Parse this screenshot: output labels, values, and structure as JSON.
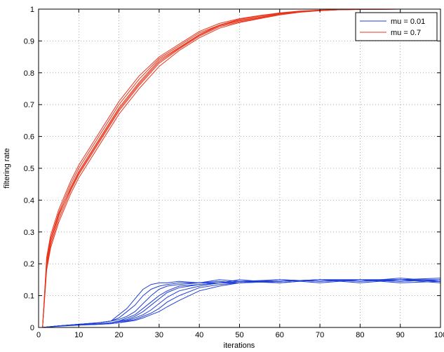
{
  "chart_data": {
    "type": "line",
    "title": "",
    "xlabel": "iterations",
    "ylabel": "filtering rate",
    "xlim": [
      0,
      100
    ],
    "ylim": [
      0,
      1
    ],
    "xticks": [
      0,
      10,
      20,
      30,
      40,
      50,
      60,
      70,
      80,
      90,
      100
    ],
    "xtick_labels": [
      "0",
      "10",
      "20",
      "30",
      "40",
      "50",
      "60",
      "70",
      "80",
      "90",
      "100"
    ],
    "yticks": [
      0,
      0.1,
      0.2,
      0.3,
      0.4,
      0.5,
      0.6,
      0.7,
      0.8,
      0.9,
      1
    ],
    "ytick_labels": [
      "0",
      "0.1",
      "0.2",
      "0.3",
      "0.4",
      "0.5",
      "0.6",
      "0.7",
      "0.8",
      "0.9",
      "1"
    ],
    "grid": true,
    "legend_position": "top-right",
    "series": [
      {
        "name": "mu = 0.01",
        "color": "#1f3fd8",
        "x": [
          1,
          5,
          10,
          15,
          18,
          20,
          22,
          24,
          26,
          28,
          30,
          32,
          35,
          40,
          45,
          50,
          60,
          70,
          80,
          90,
          100
        ],
        "runs": [
          [
            0.0,
            0.005,
            0.01,
            0.015,
            0.02,
            0.04,
            0.06,
            0.09,
            0.12,
            0.135,
            0.14,
            0.14,
            0.145,
            0.14,
            0.145,
            0.14,
            0.15,
            0.145,
            0.15,
            0.15,
            0.15
          ],
          [
            0.0,
            0.005,
            0.01,
            0.015,
            0.02,
            0.03,
            0.05,
            0.07,
            0.1,
            0.12,
            0.13,
            0.135,
            0.14,
            0.14,
            0.15,
            0.145,
            0.145,
            0.15,
            0.145,
            0.155,
            0.145
          ],
          [
            0.0,
            0.005,
            0.01,
            0.015,
            0.02,
            0.025,
            0.035,
            0.05,
            0.075,
            0.1,
            0.12,
            0.13,
            0.135,
            0.14,
            0.14,
            0.15,
            0.14,
            0.15,
            0.15,
            0.145,
            0.15
          ],
          [
            0.0,
            0.005,
            0.01,
            0.012,
            0.015,
            0.02,
            0.03,
            0.04,
            0.06,
            0.08,
            0.1,
            0.115,
            0.13,
            0.135,
            0.14,
            0.145,
            0.15,
            0.145,
            0.15,
            0.15,
            0.155
          ],
          [
            0.0,
            0.005,
            0.01,
            0.01,
            0.015,
            0.02,
            0.025,
            0.035,
            0.05,
            0.07,
            0.09,
            0.11,
            0.125,
            0.135,
            0.14,
            0.14,
            0.145,
            0.15,
            0.15,
            0.14,
            0.145
          ],
          [
            0.0,
            0.005,
            0.008,
            0.01,
            0.015,
            0.018,
            0.022,
            0.03,
            0.04,
            0.055,
            0.075,
            0.095,
            0.115,
            0.13,
            0.14,
            0.145,
            0.14,
            0.15,
            0.145,
            0.15,
            0.14
          ],
          [
            0.0,
            0.005,
            0.008,
            0.01,
            0.012,
            0.015,
            0.02,
            0.025,
            0.035,
            0.045,
            0.06,
            0.08,
            0.1,
            0.125,
            0.135,
            0.14,
            0.15,
            0.14,
            0.15,
            0.145,
            0.15
          ],
          [
            0.0,
            0.004,
            0.007,
            0.01,
            0.012,
            0.015,
            0.018,
            0.022,
            0.03,
            0.04,
            0.05,
            0.065,
            0.085,
            0.115,
            0.13,
            0.14,
            0.145,
            0.15,
            0.14,
            0.15,
            0.145
          ]
        ]
      },
      {
        "name": "mu = 0.7",
        "color": "#e8341c",
        "x": [
          1,
          2,
          3,
          5,
          8,
          10,
          15,
          20,
          25,
          30,
          35,
          40,
          45,
          50,
          55,
          60,
          65,
          70,
          75,
          80,
          90,
          100
        ],
        "runs": [
          [
            0.0,
            0.2,
            0.27,
            0.35,
            0.44,
            0.49,
            0.59,
            0.69,
            0.77,
            0.84,
            0.88,
            0.92,
            0.95,
            0.965,
            0.975,
            0.985,
            0.992,
            0.996,
            0.998,
            0.999,
            1.0,
            1.0
          ],
          [
            0.0,
            0.19,
            0.26,
            0.34,
            0.43,
            0.48,
            0.58,
            0.68,
            0.76,
            0.83,
            0.875,
            0.915,
            0.945,
            0.96,
            0.972,
            0.984,
            0.991,
            0.995,
            0.998,
            0.999,
            1.0,
            1.0
          ],
          [
            0.0,
            0.21,
            0.28,
            0.36,
            0.45,
            0.5,
            0.6,
            0.7,
            0.78,
            0.845,
            0.885,
            0.925,
            0.95,
            0.968,
            0.978,
            0.987,
            0.993,
            0.997,
            0.999,
            1.0,
            1.0,
            1.0
          ],
          [
            0.0,
            0.18,
            0.25,
            0.33,
            0.42,
            0.47,
            0.57,
            0.67,
            0.75,
            0.82,
            0.87,
            0.91,
            0.94,
            0.958,
            0.97,
            0.982,
            0.99,
            0.995,
            0.998,
            0.999,
            1.0,
            1.0
          ],
          [
            0.0,
            0.2,
            0.27,
            0.355,
            0.435,
            0.485,
            0.585,
            0.685,
            0.765,
            0.835,
            0.878,
            0.918,
            0.948,
            0.963,
            0.974,
            0.986,
            0.992,
            0.996,
            0.998,
            0.999,
            1.0,
            1.0
          ],
          [
            0.0,
            0.22,
            0.29,
            0.37,
            0.46,
            0.51,
            0.61,
            0.71,
            0.79,
            0.85,
            0.89,
            0.93,
            0.955,
            0.97,
            0.98,
            0.988,
            0.994,
            0.997,
            0.999,
            1.0,
            1.0,
            1.0
          ]
        ]
      }
    ]
  }
}
